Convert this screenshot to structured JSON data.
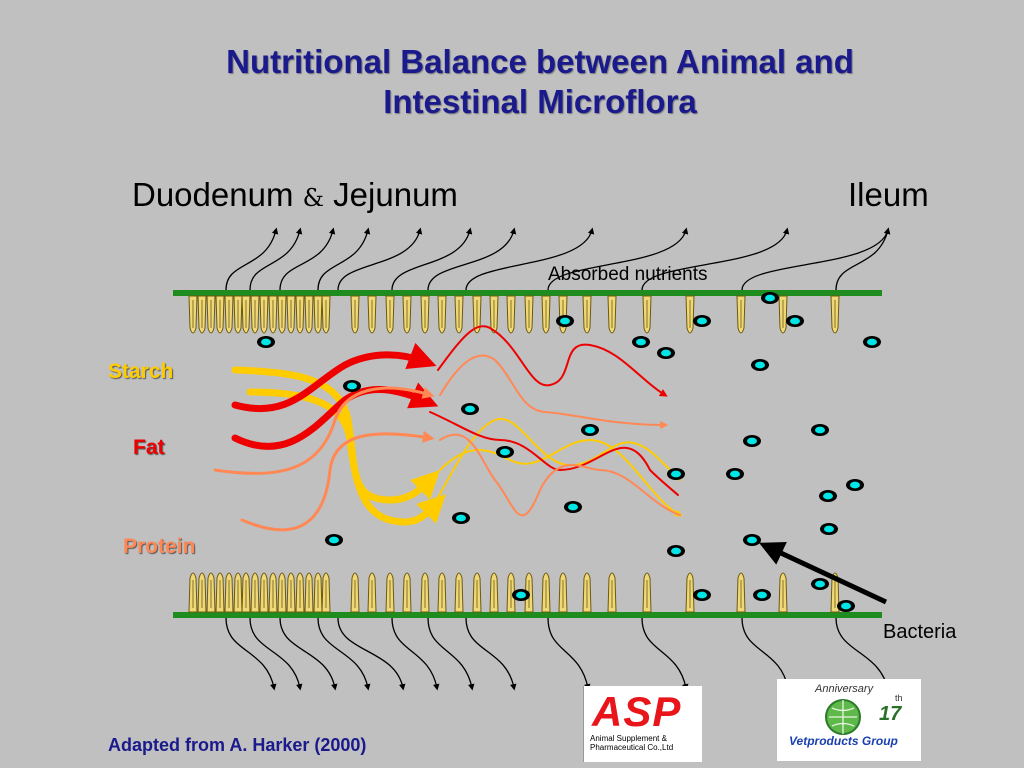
{
  "title_line1": "Nutritional Balance between Animal and",
  "title_line2": "Intestinal Microflora",
  "sections": {
    "duodenum": "Duodenum",
    "amp": "&",
    "jejunum": "Jejunum",
    "ileum": "Ileum"
  },
  "absorbed_label": "Absorbed nutrients",
  "nutrients": {
    "starch": "Starch",
    "fat": "Fat",
    "protein": "Protein"
  },
  "bacteria_label": "Bacteria",
  "credit": "Adapted from A. Harker (2000)",
  "logos": {
    "asp": {
      "name": "ASP",
      "sub_line1": "Animal Supplement &",
      "sub_line2": "Pharmaceutical Co.,Ltd"
    },
    "vetproducts": {
      "name": "Vetproducts Group",
      "anniversary": "Anniversary",
      "number": "17",
      "suffix": "th"
    }
  },
  "colors": {
    "title": "#1a1a8c",
    "starch": "#ffcc00",
    "fat": "#ee0000",
    "protein": "#ff8855",
    "wall": "#1e8c1e",
    "villus": "#f0d878",
    "bacteria": "#00e5e5"
  }
}
